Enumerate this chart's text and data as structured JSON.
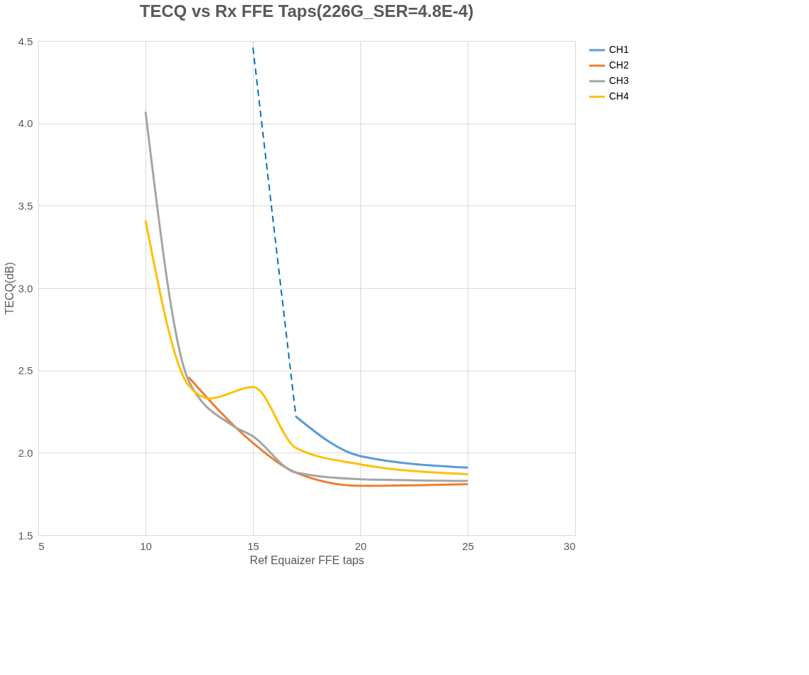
{
  "chart_data": {
    "type": "line",
    "title": "TECQ vs Rx FFE Taps(226G_SER=4.8E-4)",
    "xlabel": "Ref Equaizer FFE taps",
    "ylabel": "TECQ(dB)",
    "xlim": [
      5,
      30
    ],
    "xticks": [
      5,
      10,
      15,
      20,
      25,
      30
    ],
    "ylim": [
      1.5,
      4.5
    ],
    "yticks": [
      {
        "value": 1.5,
        "label": "1.5"
      },
      {
        "value": 2.0,
        "label": "2.0"
      },
      {
        "value": 2.5,
        "label": "2.5"
      },
      {
        "value": 3.0,
        "label": "3.0"
      },
      {
        "value": 3.5,
        "label": "3.5"
      },
      {
        "value": 4.0,
        "label": "4.0"
      },
      {
        "value": 4.5,
        "label": "4.5"
      }
    ],
    "grid": true,
    "legend": "right",
    "marker": "none",
    "series": [
      {
        "name": "CH1",
        "color": "#5b9bd5",
        "x": [
          17,
          20,
          25
        ],
        "values": [
          2.22,
          1.98,
          1.91
        ]
      },
      {
        "name": "CH2",
        "color": "#ed7d31",
        "x": [
          12,
          15,
          17,
          20,
          25
        ],
        "values": [
          2.46,
          2.06,
          1.88,
          1.8,
          1.81
        ]
      },
      {
        "name": "CH3",
        "color": "#a5a5a5",
        "x": [
          10,
          12,
          14,
          15,
          17,
          20,
          25
        ],
        "values": [
          4.07,
          2.44,
          2.17,
          2.1,
          1.88,
          1.84,
          1.83
        ]
      },
      {
        "name": "CH4",
        "color": "#ffc000",
        "x": [
          10,
          12,
          13,
          15,
          17,
          20,
          25
        ],
        "values": [
          3.41,
          2.41,
          2.33,
          2.4,
          2.03,
          1.93,
          1.87
        ]
      },
      {
        "color": "#0070c0",
        "line_style": "dashed",
        "x": [
          15,
          17
        ],
        "values": [
          4.46,
          2.22
        ]
      }
    ]
  }
}
